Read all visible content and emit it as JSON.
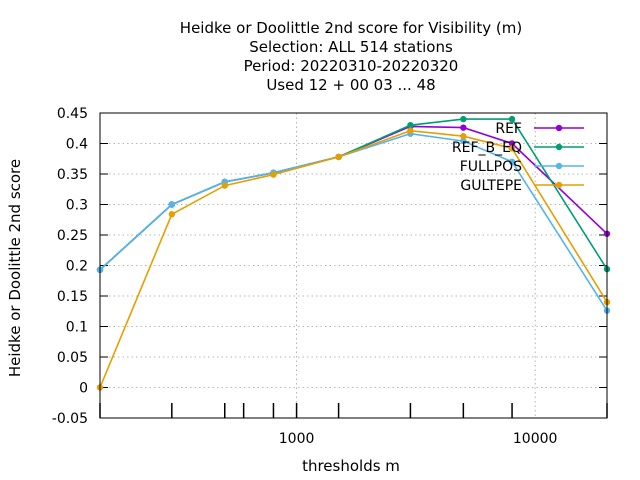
{
  "chart_data": {
    "type": "line",
    "title_lines": [
      "Heidke or Doolittle 2nd score  for Visibility (m)",
      "Selection: ALL    514 stations",
      "Period: 20220310-20220320",
      "Used  12 + 00 03 ... 48"
    ],
    "xlabel": "thresholds m",
    "ylabel": "Heidke or Doolittle 2nd score",
    "x_scale": "log",
    "xlim": [
      150,
      20000
    ],
    "ylim": [
      -0.05,
      0.45
    ],
    "x_ticks": [
      {
        "value": 1000,
        "label": "1000"
      },
      {
        "value": 10000,
        "label": "10000"
      }
    ],
    "y_ticks": [
      {
        "value": -0.05,
        "label": "-0.05"
      },
      {
        "value": 0,
        "label": "0"
      },
      {
        "value": 0.05,
        "label": "0.05"
      },
      {
        "value": 0.1,
        "label": "0.1"
      },
      {
        "value": 0.15,
        "label": "0.15"
      },
      {
        "value": 0.2,
        "label": "0.2"
      },
      {
        "value": 0.25,
        "label": "0.25"
      },
      {
        "value": 0.3,
        "label": "0.3"
      },
      {
        "value": 0.35,
        "label": "0.35"
      },
      {
        "value": 0.4,
        "label": "0.4"
      },
      {
        "value": 0.45,
        "label": "0.45"
      }
    ],
    "threshold_marks": [
      150,
      300,
      500,
      600,
      800,
      1000,
      1500,
      3000,
      5000,
      8000,
      20000
    ],
    "grid": true,
    "legend_position": "top-right",
    "x": [
      150,
      300,
      500,
      800,
      1500,
      3000,
      5000,
      8000,
      20000
    ],
    "series": [
      {
        "name": "REF",
        "color": "#9400d3",
        "values": [
          0.193,
          0.3,
          0.337,
          0.352,
          0.378,
          0.428,
          0.426,
          0.4,
          0.252
        ]
      },
      {
        "name": "REF_B_EQ",
        "color": "#009e73",
        "values": [
          0.193,
          0.3,
          0.337,
          0.352,
          0.378,
          0.43,
          0.44,
          0.44,
          0.194
        ]
      },
      {
        "name": "FULLPOS",
        "color": "#56b4e9",
        "values": [
          0.193,
          0.3,
          0.337,
          0.352,
          0.378,
          0.416,
          0.404,
          0.37,
          0.126
        ]
      },
      {
        "name": "GULTEPE",
        "color": "#e69f00",
        "values": [
          0.0,
          0.284,
          0.331,
          0.349,
          0.378,
          0.421,
          0.412,
          0.392,
          0.14
        ]
      }
    ]
  }
}
